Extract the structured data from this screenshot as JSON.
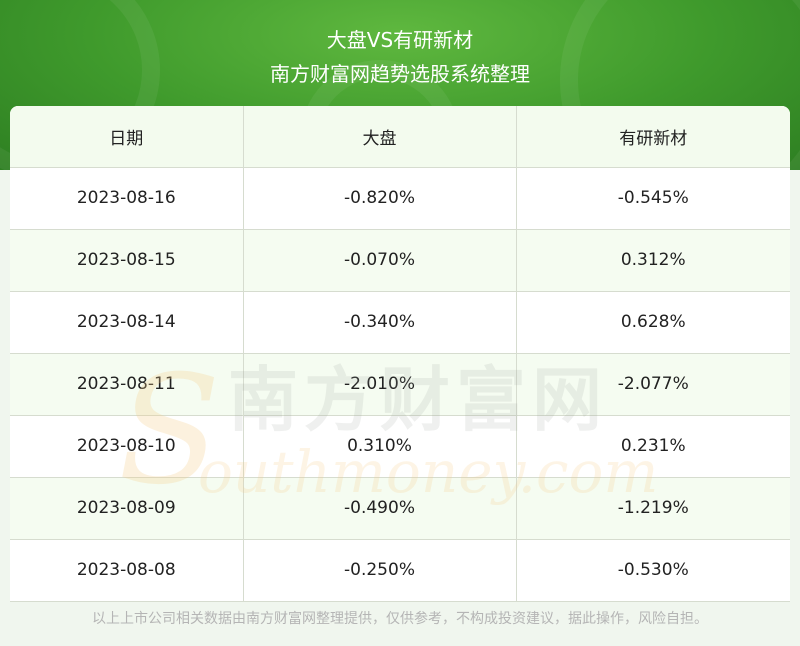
{
  "header": {
    "title_line1": "大盘VS有研新材",
    "title_line2": "南方财富网趋势选股系统整理"
  },
  "table": {
    "columns": [
      "日期",
      "大盘",
      "有研新材"
    ],
    "rows": [
      [
        "2023-08-16",
        "-0.820%",
        "-0.545%"
      ],
      [
        "2023-08-15",
        "-0.070%",
        "0.312%"
      ],
      [
        "2023-08-14",
        "-0.340%",
        "0.628%"
      ],
      [
        "2023-08-11",
        "-2.010%",
        "-2.077%"
      ],
      [
        "2023-08-10",
        "0.310%",
        "0.231%"
      ],
      [
        "2023-08-09",
        "-0.490%",
        "-1.219%"
      ],
      [
        "2023-08-08",
        "-0.250%",
        "-0.530%"
      ]
    ]
  },
  "watermark": {
    "cn": "南方财富网",
    "en": "outhmoney.com"
  },
  "footer": {
    "disclaimer": "以上上市公司相关数据由南方财富网整理提供，仅供参考，不构成投资建议，据此操作，风险自担。"
  },
  "colors": {
    "header_green": "#3f9a2c",
    "row_alt": "#f3fbee",
    "grid_line": "#d6dccf",
    "footer_text": "#b5b5b5"
  }
}
